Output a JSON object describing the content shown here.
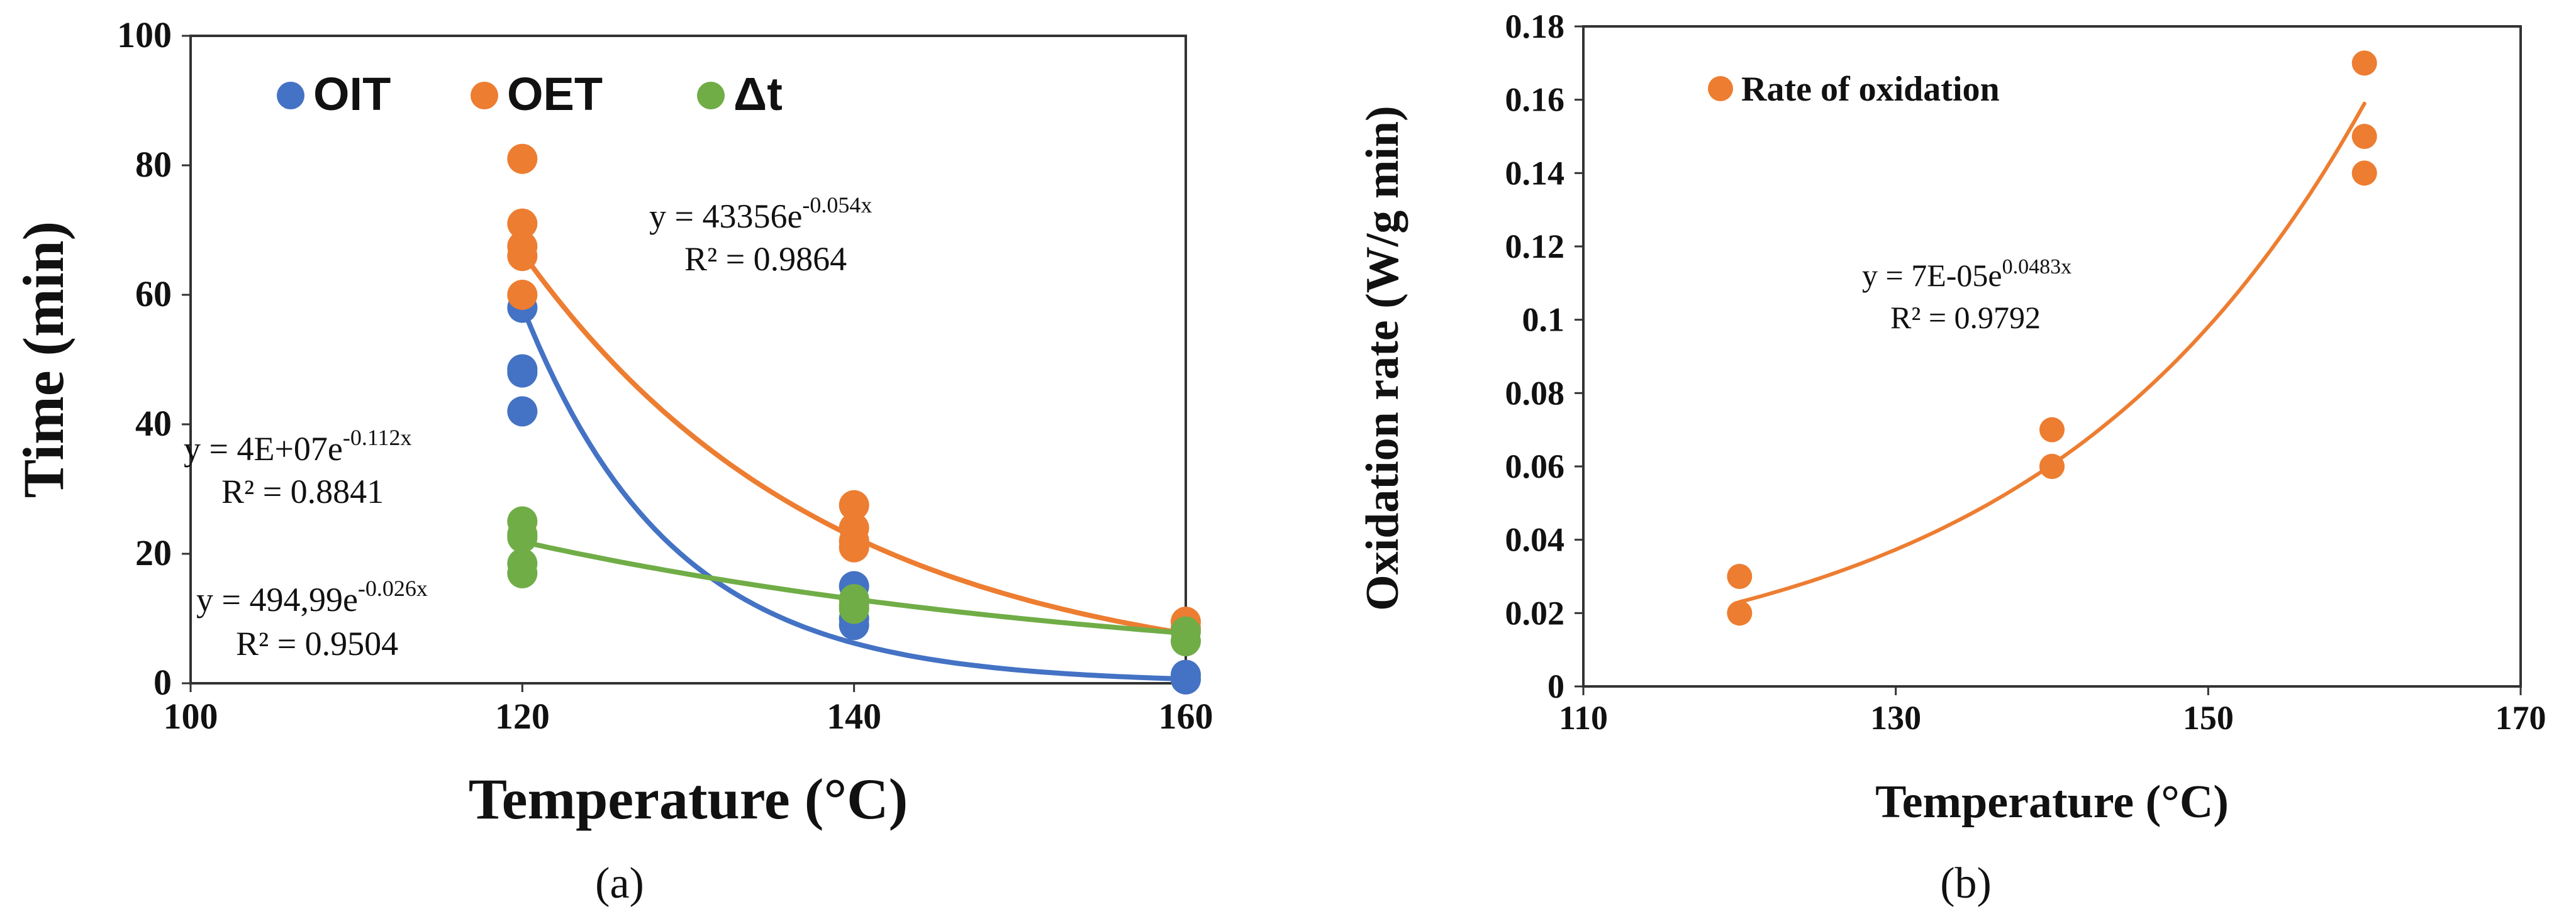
{
  "chart_data": [
    {
      "type": "scatter",
      "caption": "(a)",
      "xlabel": "Temperature (°C)",
      "ylabel": "Time (min)",
      "xlim": [
        100,
        160
      ],
      "ylim": [
        0,
        100
      ],
      "xticks": [
        "100",
        "120",
        "140",
        "160"
      ],
      "yticks": [
        "0",
        "20",
        "40",
        "60",
        "80",
        "100"
      ],
      "legend_position": "top",
      "series": [
        {
          "name": "OIT",
          "color": "#4472c4",
          "points": [
            [
              120,
              58
            ],
            [
              120,
              48.5
            ],
            [
              120,
              48
            ],
            [
              120,
              42
            ],
            [
              140,
              15
            ],
            [
              140,
              10
            ],
            [
              140,
              9
            ],
            [
              160,
              1.3
            ],
            [
              160,
              0.6
            ]
          ],
          "trend": {
            "a": 40000000,
            "b": -0.112,
            "x_range": [
              120,
              160
            ]
          },
          "equation_main": "y = 4E+07e",
          "equation_exp": "-0.112x",
          "r2": "R² = 0.8841"
        },
        {
          "name": "OET",
          "color": "#ed7d31",
          "points": [
            [
              120,
              81
            ],
            [
              120,
              71
            ],
            [
              120,
              67.5
            ],
            [
              120,
              66
            ],
            [
              120,
              60
            ],
            [
              140,
              27.5
            ],
            [
              140,
              24
            ],
            [
              140,
              22
            ],
            [
              140,
              21
            ],
            [
              160,
              9.5
            ],
            [
              160,
              8.5
            ]
          ],
          "trend": {
            "a": 43356,
            "b": -0.054,
            "x_range": [
              120,
              160
            ]
          },
          "equation_main": "y = 43356e",
          "equation_exp": "-0.054x",
          "r2": "R² = 0.9864"
        },
        {
          "name": "Δt",
          "color": "#70ad47",
          "points": [
            [
              120,
              25
            ],
            [
              120,
              23
            ],
            [
              120,
              22.5
            ],
            [
              120,
              18.5
            ],
            [
              120,
              17
            ],
            [
              140,
              13
            ],
            [
              140,
              12
            ],
            [
              140,
              11.5
            ],
            [
              160,
              8
            ],
            [
              160,
              6.5
            ]
          ],
          "trend": {
            "a": 494.99,
            "b": -0.026,
            "x_range": [
              120,
              160
            ]
          },
          "equation_main": "y = 494,99e",
          "equation_exp": "-0.026x",
          "r2": "R² = 0.9504"
        }
      ]
    },
    {
      "type": "scatter",
      "caption": "(b)",
      "xlabel": "Temperature (°C)",
      "ylabel": "Oxidation rate (W/g min)",
      "xlim": [
        110,
        170
      ],
      "ylim": [
        0,
        0.18
      ],
      "xticks": [
        "110",
        "130",
        "150",
        "170"
      ],
      "yticks": [
        "0",
        "0.02",
        "0.04",
        "0.06",
        "0.08",
        "0.1",
        "0.12",
        "0.14",
        "0.16",
        "0.18"
      ],
      "legend_position": "top-left",
      "series": [
        {
          "name": "Rate of oxidation",
          "color": "#ed7d31",
          "points": [
            [
              120,
              0.03
            ],
            [
              120,
              0.02
            ],
            [
              140,
              0.07
            ],
            [
              140,
              0.06
            ],
            [
              140,
              0.06
            ],
            [
              160,
              0.17
            ],
            [
              160,
              0.15
            ],
            [
              160,
              0.14
            ]
          ],
          "trend": {
            "a": 7e-05,
            "b": 0.0483,
            "x_range": [
              120,
              160
            ]
          },
          "equation_main": "y = 7E-05e",
          "equation_exp": "0.0483x",
          "r2": "R² = 0.9792"
        }
      ]
    }
  ]
}
